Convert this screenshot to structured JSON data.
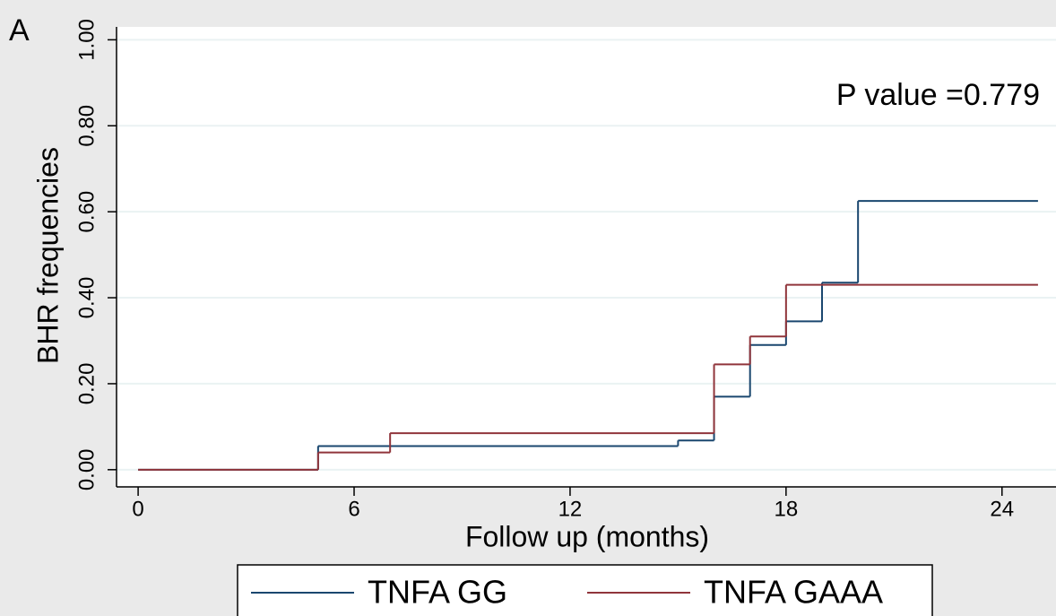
{
  "chart_data": {
    "type": "line",
    "step": "post",
    "panel_label": "A",
    "annotation": "P value =0.779",
    "xlabel": "Follow up (months)",
    "ylabel": "BHR frequencies",
    "xlim": [
      -0.6,
      25.5
    ],
    "ylim": [
      -0.04,
      1.03
    ],
    "xticks": [
      0,
      6,
      12,
      18,
      24
    ],
    "yticks": [
      {
        "value": 0,
        "label": "0.00"
      },
      {
        "value": 0.2,
        "label": "0.20"
      },
      {
        "value": 0.4,
        "label": "0.40"
      },
      {
        "value": 0.6,
        "label": "0.60"
      },
      {
        "value": 0.8,
        "label": "0.80"
      },
      {
        "value": 1,
        "label": "1.00"
      }
    ],
    "grid": true,
    "legend": "bottom",
    "series": [
      {
        "name": "TNFA GG",
        "color": "#1a476f",
        "x": [
          0,
          5,
          15,
          16,
          17,
          18,
          19,
          20,
          25
        ],
        "values": [
          0,
          0.055,
          0.068,
          0.17,
          0.29,
          0.345,
          0.435,
          0.625,
          0.625
        ]
      },
      {
        "name": "TNFA GAAA",
        "color": "#90353b",
        "x": [
          0,
          5,
          7,
          16,
          17,
          18,
          25
        ],
        "values": [
          0,
          0.04,
          0.085,
          0.245,
          0.31,
          0.43,
          0.43
        ]
      }
    ]
  }
}
